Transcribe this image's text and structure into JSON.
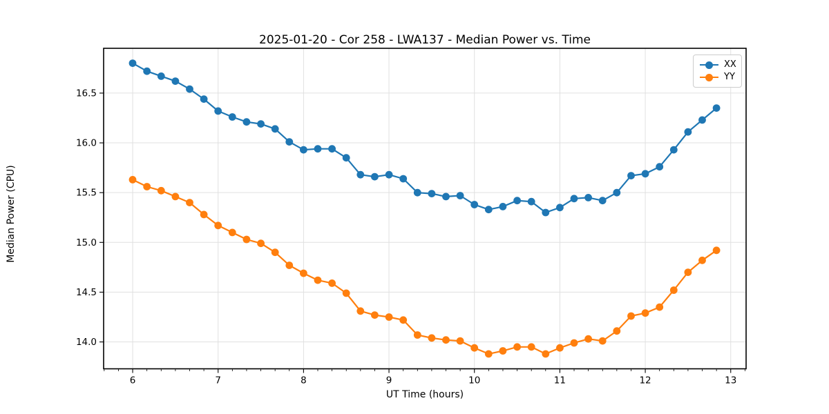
{
  "figure": {
    "title": "2025-01-20 - Cor 258 - LWA137 - Median Power vs. Time"
  },
  "chart_data": {
    "type": "line",
    "title": "2025-01-20 - Cor 258 - LWA137 - Median Power vs. Time",
    "xlabel": "UT Time (hours)",
    "ylabel": "Median Power (CPU)",
    "xlim": [
      5.66,
      13.18
    ],
    "ylim": [
      13.73,
      16.95
    ],
    "grid": true,
    "legend_position": "upper right",
    "xticks": {
      "values": [
        6,
        7,
        8,
        9,
        10,
        11,
        12,
        13
      ],
      "labels": [
        "6",
        "7",
        "8",
        "9",
        "10",
        "11",
        "12",
        "13"
      ]
    },
    "yticks": {
      "values": [
        14.0,
        14.5,
        15.0,
        15.5,
        16.0,
        16.5
      ],
      "labels": [
        "14.0",
        "14.5",
        "15.0",
        "15.5",
        "16.0",
        "16.5"
      ]
    },
    "x_minor_interval_hours": 0.166667,
    "x": [
      6.0,
      6.1667,
      6.3333,
      6.5,
      6.6667,
      6.8333,
      7.0,
      7.1667,
      7.3333,
      7.5,
      7.6667,
      7.8333,
      8.0,
      8.1667,
      8.3333,
      8.5,
      8.6667,
      8.8333,
      9.0,
      9.1667,
      9.3333,
      9.5,
      9.6667,
      9.8333,
      10.0,
      10.1667,
      10.3333,
      10.5,
      10.6667,
      10.8333,
      11.0,
      11.1667,
      11.3333,
      11.5,
      11.6667,
      11.8333,
      12.0,
      12.1667,
      12.3333,
      12.5,
      12.6667,
      12.8333
    ],
    "series": [
      {
        "name": "XX",
        "color": "#1f77b4",
        "values": [
          16.8,
          16.72,
          16.67,
          16.62,
          16.54,
          16.44,
          16.32,
          16.26,
          16.21,
          16.19,
          16.14,
          16.01,
          15.93,
          15.94,
          15.94,
          15.85,
          15.68,
          15.66,
          15.68,
          15.64,
          15.5,
          15.49,
          15.46,
          15.47,
          15.38,
          15.33,
          15.36,
          15.42,
          15.41,
          15.3,
          15.35,
          15.44,
          15.45,
          15.42,
          15.5,
          15.67,
          15.69,
          15.76,
          15.93,
          16.11,
          16.23,
          16.35
        ]
      },
      {
        "name": "YY",
        "color": "#ff7f0e",
        "values": [
          15.63,
          15.56,
          15.52,
          15.46,
          15.4,
          15.28,
          15.17,
          15.1,
          15.03,
          14.99,
          14.9,
          14.77,
          14.69,
          14.62,
          14.59,
          14.49,
          14.31,
          14.27,
          14.25,
          14.22,
          14.07,
          14.04,
          14.02,
          14.01,
          13.94,
          13.88,
          13.91,
          13.95,
          13.95,
          13.88,
          13.94,
          13.99,
          14.03,
          14.01,
          14.11,
          14.26,
          14.29,
          14.35,
          14.52,
          14.7,
          14.82,
          14.92
        ]
      }
    ]
  },
  "style": {
    "grid_color": "#e0e0e0",
    "spine_color": "#000000",
    "tick_color": "#000000",
    "background": "#ffffff"
  }
}
